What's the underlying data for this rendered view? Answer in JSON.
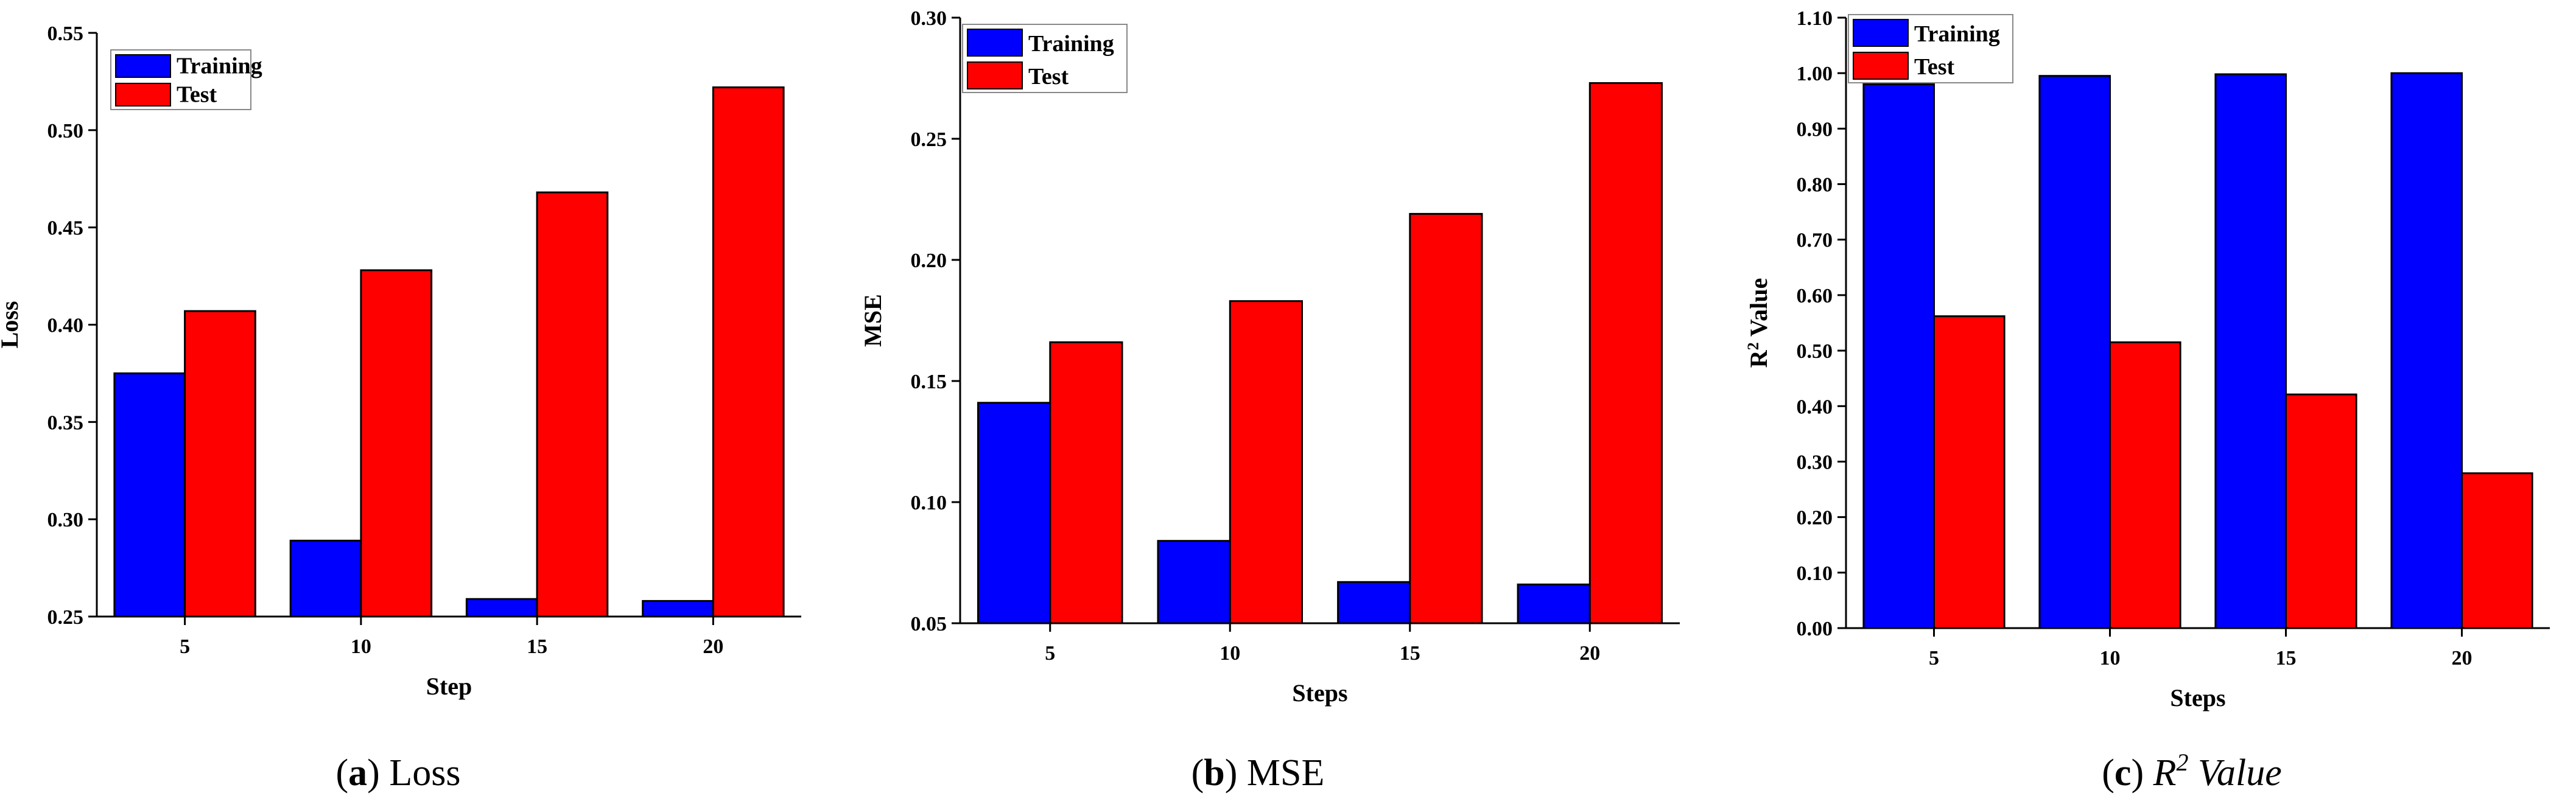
{
  "colors": {
    "training": "#0000ff",
    "test": "#ff0000",
    "axis": "#000000"
  },
  "chart_data": [
    {
      "type": "bar",
      "categories": [
        "5",
        "10",
        "15",
        "20"
      ],
      "series": [
        {
          "name": "Training",
          "values": [
            0.375,
            0.289,
            0.259,
            0.258
          ]
        },
        {
          "name": "Test",
          "values": [
            0.407,
            0.428,
            0.468,
            0.522
          ]
        }
      ],
      "xlabel": "Step",
      "ylabel": "Loss",
      "ylim": [
        0.25,
        0.55
      ],
      "yticks": [
        "0.25",
        "0.30",
        "0.35",
        "0.40",
        "0.45",
        "0.50",
        "0.55"
      ],
      "legend": "top-left",
      "caption": {
        "tag": "a",
        "text": "Loss"
      }
    },
    {
      "type": "bar",
      "categories": [
        "5",
        "10",
        "15",
        "20"
      ],
      "series": [
        {
          "name": "Training",
          "values": [
            0.141,
            0.084,
            0.067,
            0.066
          ]
        },
        {
          "name": "Test",
          "values": [
            0.166,
            0.183,
            0.219,
            0.273
          ]
        }
      ],
      "xlabel": "Steps",
      "ylabel": "MSE",
      "ylim": [
        0.05,
        0.3
      ],
      "yticks": [
        "0.05",
        "0.10",
        "0.15",
        "0.20",
        "0.25",
        "0.30"
      ],
      "legend": "top-left",
      "caption": {
        "tag": "b",
        "text": "MSE"
      }
    },
    {
      "type": "bar",
      "categories": [
        "5",
        "10",
        "15",
        "20"
      ],
      "series": [
        {
          "name": "Training",
          "values": [
            0.98,
            0.995,
            0.998,
            1.0
          ]
        },
        {
          "name": "Test",
          "values": [
            0.562,
            0.515,
            0.421,
            0.279
          ]
        }
      ],
      "xlabel": "Steps",
      "ylabel": "R2 Value",
      "ylim": [
        0.0,
        1.1
      ],
      "yticks": [
        "0.00",
        "0.10",
        "0.20",
        "0.30",
        "0.40",
        "0.50",
        "0.60",
        "0.70",
        "0.80",
        "0.90",
        "1.00",
        "1.10"
      ],
      "legend": "top-left",
      "caption": {
        "tag": "c",
        "text": "R2 Value"
      }
    }
  ]
}
